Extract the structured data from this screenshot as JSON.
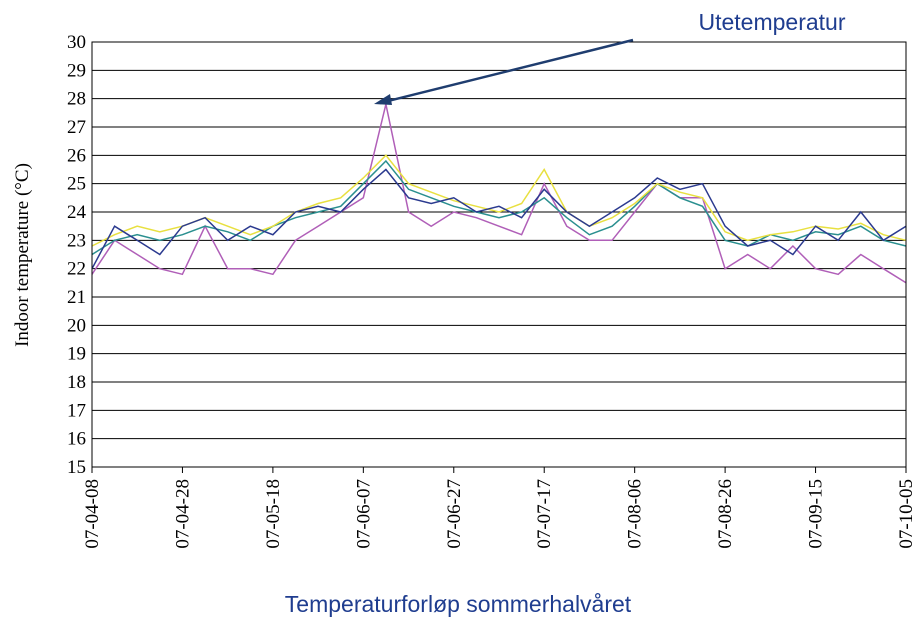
{
  "chart_data": {
    "type": "line",
    "title": "Temperaturforløp sommerhalvåret",
    "annotation": "Utetemperatur",
    "ylabel": "Indoor temperature (°C)",
    "x": [
      "07-04-08",
      "07-04-13",
      "07-04-18",
      "07-04-23",
      "07-04-28",
      "07-05-03",
      "07-05-08",
      "07-05-13",
      "07-05-18",
      "07-05-23",
      "07-05-28",
      "07-06-02",
      "07-06-07",
      "07-06-12",
      "07-06-17",
      "07-06-22",
      "07-06-27",
      "07-07-02",
      "07-07-07",
      "07-07-12",
      "07-07-17",
      "07-07-22",
      "07-07-27",
      "07-08-01",
      "07-08-06",
      "07-08-11",
      "07-08-16",
      "07-08-21",
      "07-08-26",
      "07-08-31",
      "07-09-05",
      "07-09-10",
      "07-09-15",
      "07-09-20",
      "07-09-25",
      "07-09-30",
      "07-10-05"
    ],
    "series": [
      {
        "color": "#b05fb8",
        "values": [
          21.8,
          23.0,
          22.5,
          22.0,
          21.8,
          23.5,
          22.0,
          22.0,
          21.8,
          23.0,
          23.5,
          24.0,
          24.5,
          27.8,
          24.0,
          23.5,
          24.0,
          23.8,
          23.5,
          23.2,
          25.0,
          23.5,
          23.0,
          23.0,
          24.0,
          25.0,
          24.5,
          24.5,
          22.0,
          22.5,
          22.0,
          22.8,
          22.0,
          21.8,
          22.5,
          22.0,
          21.5
        ]
      },
      {
        "color": "#2a8f8f",
        "values": [
          22.5,
          23.0,
          23.2,
          23.0,
          23.2,
          23.5,
          23.3,
          23.0,
          23.5,
          23.8,
          24.0,
          24.2,
          25.0,
          25.8,
          24.8,
          24.5,
          24.2,
          24.0,
          23.8,
          24.0,
          24.5,
          23.8,
          23.2,
          23.5,
          24.2,
          25.0,
          24.5,
          24.2,
          23.0,
          22.8,
          23.2,
          23.0,
          23.3,
          23.2,
          23.5,
          23.0,
          22.8
        ]
      },
      {
        "color": "#e8e040",
        "values": [
          22.8,
          23.2,
          23.5,
          23.3,
          23.5,
          23.8,
          23.5,
          23.2,
          23.5,
          24.0,
          24.3,
          24.5,
          25.2,
          26.0,
          25.0,
          24.7,
          24.4,
          24.2,
          24.0,
          24.3,
          25.5,
          24.0,
          23.5,
          23.8,
          24.3,
          25.0,
          24.7,
          24.5,
          23.3,
          23.0,
          23.2,
          23.3,
          23.5,
          23.4,
          23.6,
          23.2,
          23.0
        ]
      },
      {
        "color": "#2b3a8f",
        "values": [
          22.0,
          23.5,
          23.0,
          22.5,
          23.5,
          23.8,
          23.0,
          23.5,
          23.2,
          24.0,
          24.2,
          24.0,
          24.8,
          25.5,
          24.5,
          24.3,
          24.5,
          24.0,
          24.2,
          23.8,
          24.8,
          24.0,
          23.5,
          24.0,
          24.5,
          25.2,
          24.8,
          25.0,
          23.5,
          22.8,
          23.0,
          22.5,
          23.5,
          23.0,
          24.0,
          23.0,
          23.5
        ]
      }
    ],
    "xlim": [
      "07-04-08",
      "07-10-05"
    ],
    "xticks": [
      "07-04-08",
      "07-04-28",
      "07-05-18",
      "07-06-07",
      "07-06-27",
      "07-07-17",
      "07-08-06",
      "07-08-26",
      "07-09-15",
      "07-10-05"
    ],
    "ylim": [
      15,
      30
    ],
    "yticks": [
      15,
      16,
      17,
      18,
      19,
      20,
      21,
      22,
      23,
      24,
      25,
      26,
      27,
      28,
      29,
      30
    ],
    "grid": true
  }
}
